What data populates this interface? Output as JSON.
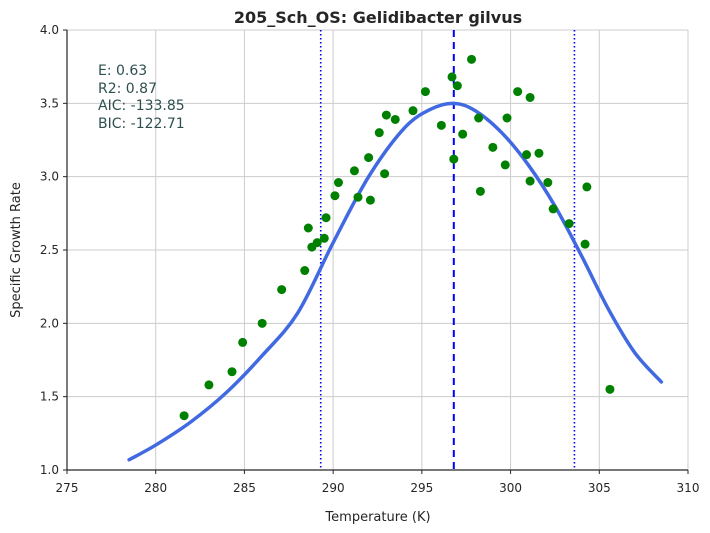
{
  "chart_data": {
    "type": "scatter",
    "title": "205_Sch_OS: Gelidibacter gilvus",
    "xlabel": "Temperature (K)",
    "ylabel": "Specific Growth Rate",
    "xlim": [
      275,
      310
    ],
    "ylim": [
      1.0,
      4.0
    ],
    "xticks": [
      "275",
      "280",
      "285",
      "290",
      "295",
      "300",
      "305",
      "310"
    ],
    "yticks": [
      "1.0",
      "1.5",
      "2.0",
      "2.5",
      "3.0",
      "3.5",
      "4.0"
    ],
    "grid": true,
    "stats": {
      "e": "E:  0.63",
      "r2": "R2:  0.87",
      "aic": "AIC: -133.85",
      "bic": "BIC: -122.71"
    },
    "points": {
      "color": "#008000",
      "x": [
        281.6,
        283.0,
        284.3,
        284.9,
        286.0,
        287.1,
        288.4,
        288.6,
        288.8,
        289.1,
        289.5,
        289.6,
        290.1,
        290.3,
        291.2,
        291.4,
        292.0,
        292.1,
        292.6,
        292.9,
        293.0,
        293.5,
        294.5,
        295.2,
        296.1,
        296.7,
        296.8,
        297.0,
        297.3,
        297.8,
        298.2,
        298.3,
        299.0,
        299.7,
        299.8,
        300.4,
        300.9,
        301.1,
        301.1,
        301.6,
        302.1,
        302.4,
        303.3,
        304.2,
        304.3,
        305.6
      ],
      "y": [
        1.37,
        1.58,
        1.67,
        1.87,
        2.0,
        2.23,
        2.36,
        2.65,
        2.52,
        2.55,
        2.58,
        2.72,
        2.87,
        2.96,
        3.04,
        2.86,
        3.13,
        2.84,
        3.3,
        3.02,
        3.42,
        3.39,
        3.45,
        3.58,
        3.35,
        3.68,
        3.12,
        3.62,
        3.29,
        3.8,
        3.4,
        2.9,
        3.2,
        3.08,
        3.4,
        3.58,
        3.15,
        2.97,
        3.54,
        3.16,
        2.96,
        2.78,
        2.68,
        2.54,
        2.93,
        1.55
      ]
    },
    "fit": {
      "color": "#4169e1",
      "x": [
        278.5,
        280.0,
        282.0,
        284.0,
        286.0,
        288.0,
        290.0,
        292.0,
        294.0,
        295.5,
        296.8,
        298.0,
        299.5,
        301.0,
        302.5,
        304.0,
        305.5,
        307.0,
        308.5
      ],
      "y": [
        1.07,
        1.17,
        1.33,
        1.53,
        1.78,
        2.07,
        2.55,
        3.0,
        3.33,
        3.46,
        3.5,
        3.45,
        3.3,
        3.08,
        2.8,
        2.46,
        2.1,
        1.8,
        1.6
      ]
    },
    "vlines": [
      {
        "x": 296.8,
        "style": "dashed",
        "color": "#0000ff"
      },
      {
        "x": 289.3,
        "style": "dotted",
        "color": "#0000ff"
      },
      {
        "x": 303.6,
        "style": "dotted",
        "color": "#0000ff"
      }
    ]
  }
}
